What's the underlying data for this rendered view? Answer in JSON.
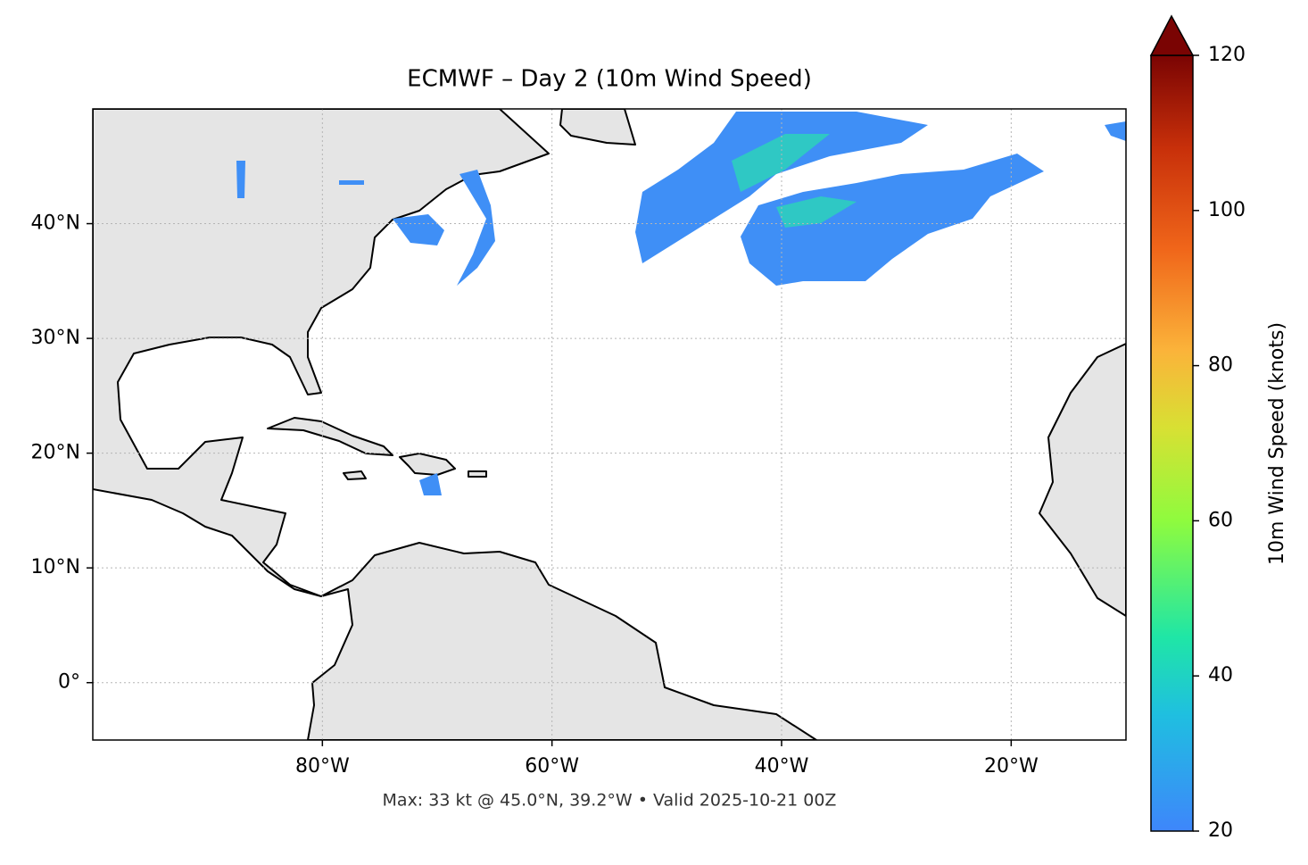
{
  "chart_data": {
    "type": "map",
    "title": "ECMWF – Day 2 (10m Wind Speed)",
    "xlim": [
      -100,
      -10
    ],
    "ylim": [
      -5,
      50
    ],
    "xticks": [
      {
        "value": -80,
        "label": "80°W"
      },
      {
        "value": -60,
        "label": "60°W"
      },
      {
        "value": -40,
        "label": "40°W"
      },
      {
        "value": -20,
        "label": "20°W"
      }
    ],
    "yticks": [
      {
        "value": 0,
        "label": "0°"
      },
      {
        "value": 10,
        "label": "10°N"
      },
      {
        "value": 20,
        "label": "20°N"
      },
      {
        "value": 30,
        "label": "30°N"
      },
      {
        "value": 40,
        "label": "40°N"
      }
    ],
    "grid": true,
    "footnote": "Max: 33 kt @ 45.0°N, 39.2°W • Valid 2025-10-21 00Z",
    "colorbar": {
      "label": "10m Wind Speed (knots)",
      "lim": [
        20,
        120
      ],
      "ticks": [
        20,
        40,
        60,
        80,
        100,
        120
      ],
      "extend": "max"
    }
  }
}
